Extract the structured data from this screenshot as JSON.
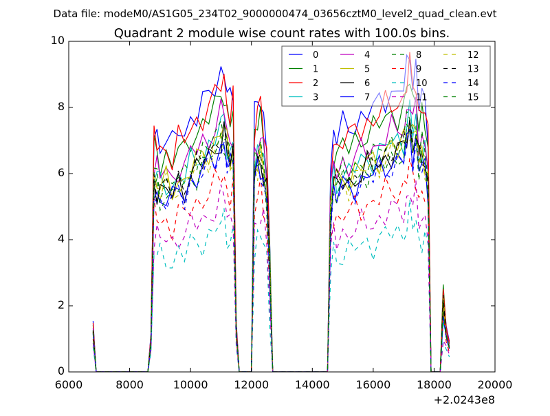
{
  "chart_data": {
    "type": "line",
    "suptitle": "Data file: modeM0/AS1G05_234T02_9000000474_03656cztM0_level2_quad_clean.evt",
    "title": "Quadrant 2 module wise count rates with 100.0s bins.",
    "xlabel": "",
    "ylabel": "",
    "xlim": [
      6000,
      20000
    ],
    "ylim": [
      0,
      10
    ],
    "x_offset_label": "+2.0243e8",
    "xticks": [
      6000,
      8000,
      10000,
      12000,
      14000,
      16000,
      18000,
      20000
    ],
    "yticks": [
      0,
      2,
      4,
      6,
      8,
      10
    ],
    "legend_position": "top-right",
    "legend_columns": 4,
    "x": [
      6800,
      6900,
      8500,
      8600,
      8700,
      8800,
      8900,
      9000,
      9200,
      9400,
      9600,
      9800,
      10000,
      10200,
      10400,
      10600,
      10800,
      11000,
      11100,
      11200,
      11300,
      11400,
      11500,
      11600,
      12000,
      12100,
      12200,
      12300,
      12400,
      12500,
      12600,
      12700,
      14500,
      14600,
      14700,
      14800,
      15000,
      15200,
      15400,
      15600,
      15800,
      16000,
      16200,
      16400,
      16600,
      16800,
      17000,
      17100,
      17200,
      17300,
      17400,
      17500,
      17600,
      17700,
      17800,
      17900,
      18200,
      18300,
      18400,
      18500
    ],
    "profile": [
      0.2,
      0,
      0,
      0,
      0.15,
      0.95,
      0.93,
      0.9,
      0.92,
      0.88,
      0.95,
      0.93,
      1.0,
      1.02,
      1.05,
      1.08,
      1.12,
      1.18,
      1.2,
      1.1,
      1.05,
      1.1,
      0.2,
      0,
      0,
      1.0,
      1.05,
      1.08,
      1.0,
      0.9,
      0.5,
      0,
      0,
      0.8,
      0.95,
      0.92,
      0.96,
      0.95,
      0.98,
      1.0,
      1.02,
      1.03,
      1.05,
      1.08,
      1.1,
      1.1,
      1.12,
      1.18,
      1.25,
      1.15,
      1.2,
      1.05,
      1.08,
      1.05,
      0.95,
      0,
      0,
      0.32,
      0.18,
      0.12
    ],
    "series": [
      {
        "name": "0",
        "color": "#0000ff",
        "dashed": false,
        "level": 7.7
      },
      {
        "name": "1",
        "color": "#008000",
        "dashed": false,
        "level": 7.1
      },
      {
        "name": "2",
        "color": "#ff0000",
        "dashed": false,
        "level": 7.4
      },
      {
        "name": "3",
        "color": "#00bfbf",
        "dashed": false,
        "level": 6.3
      },
      {
        "name": "4",
        "color": "#bf00bf",
        "dashed": false,
        "level": 6.6
      },
      {
        "name": "5",
        "color": "#bfbf00",
        "dashed": false,
        "level": 6.2
      },
      {
        "name": "6",
        "color": "#000000",
        "dashed": false,
        "level": 6.0
      },
      {
        "name": "7",
        "color": "#0000ff",
        "dashed": false,
        "level": 5.8
      },
      {
        "name": "8",
        "color": "#008000",
        "dashed": true,
        "level": 6.3
      },
      {
        "name": "9",
        "color": "#ff0000",
        "dashed": true,
        "level": 5.0
      },
      {
        "name": "10",
        "color": "#00bfbf",
        "dashed": true,
        "level": 3.8
      },
      {
        "name": "11",
        "color": "#bf00bf",
        "dashed": true,
        "level": 4.4
      },
      {
        "name": "12",
        "color": "#bfbf00",
        "dashed": true,
        "level": 6.0
      },
      {
        "name": "13",
        "color": "#000000",
        "dashed": true,
        "level": 6.1
      },
      {
        "name": "14",
        "color": "#0000ff",
        "dashed": true,
        "level": 5.7
      },
      {
        "name": "15",
        "color": "#008000",
        "dashed": true,
        "level": 5.9
      }
    ]
  }
}
